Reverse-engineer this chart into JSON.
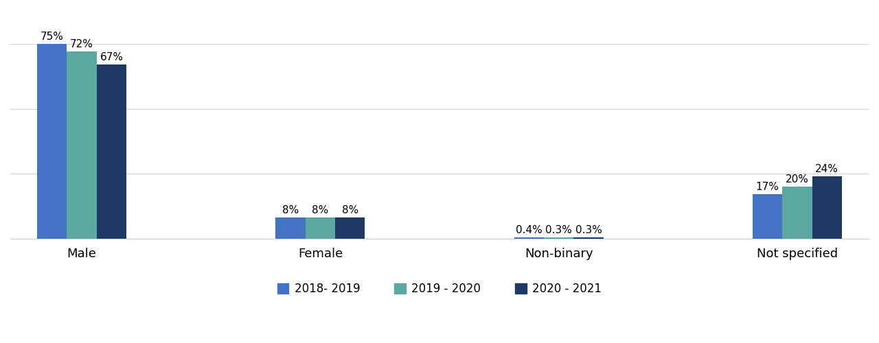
{
  "categories": [
    "Male",
    "Female",
    "Non-binary",
    "Not specified"
  ],
  "series": {
    "2018- 2019": [
      75,
      8,
      0.4,
      17
    ],
    "2019 - 2020": [
      72,
      8,
      0.3,
      20
    ],
    "2020 - 2021": [
      67,
      8,
      0.3,
      24
    ]
  },
  "series_order": [
    "2018- 2019",
    "2019 - 2020",
    "2020 - 2021"
  ],
  "colors": {
    "2018- 2019": "#4472C4",
    "2019 - 2020": "#5BA8A0",
    "2020 - 2021": "#1F3864"
  },
  "bar_labels": {
    "Male": [
      "75%",
      "72%",
      "67%"
    ],
    "Female": [
      "8%",
      "8%",
      "8%"
    ],
    "Non-binary": [
      "0.4%",
      "0.3%",
      "0.3%"
    ],
    "Not specified": [
      "17%",
      "20%",
      "24%"
    ]
  },
  "ylim": [
    0,
    88
  ],
  "yticks": [
    0,
    25,
    50,
    75
  ],
  "background_color": "#ffffff",
  "grid_color": "#d0d0d0",
  "bar_width": 0.25,
  "legend_fontsize": 12,
  "label_fontsize": 11,
  "tick_fontsize": 13,
  "category_fontsize": 13
}
